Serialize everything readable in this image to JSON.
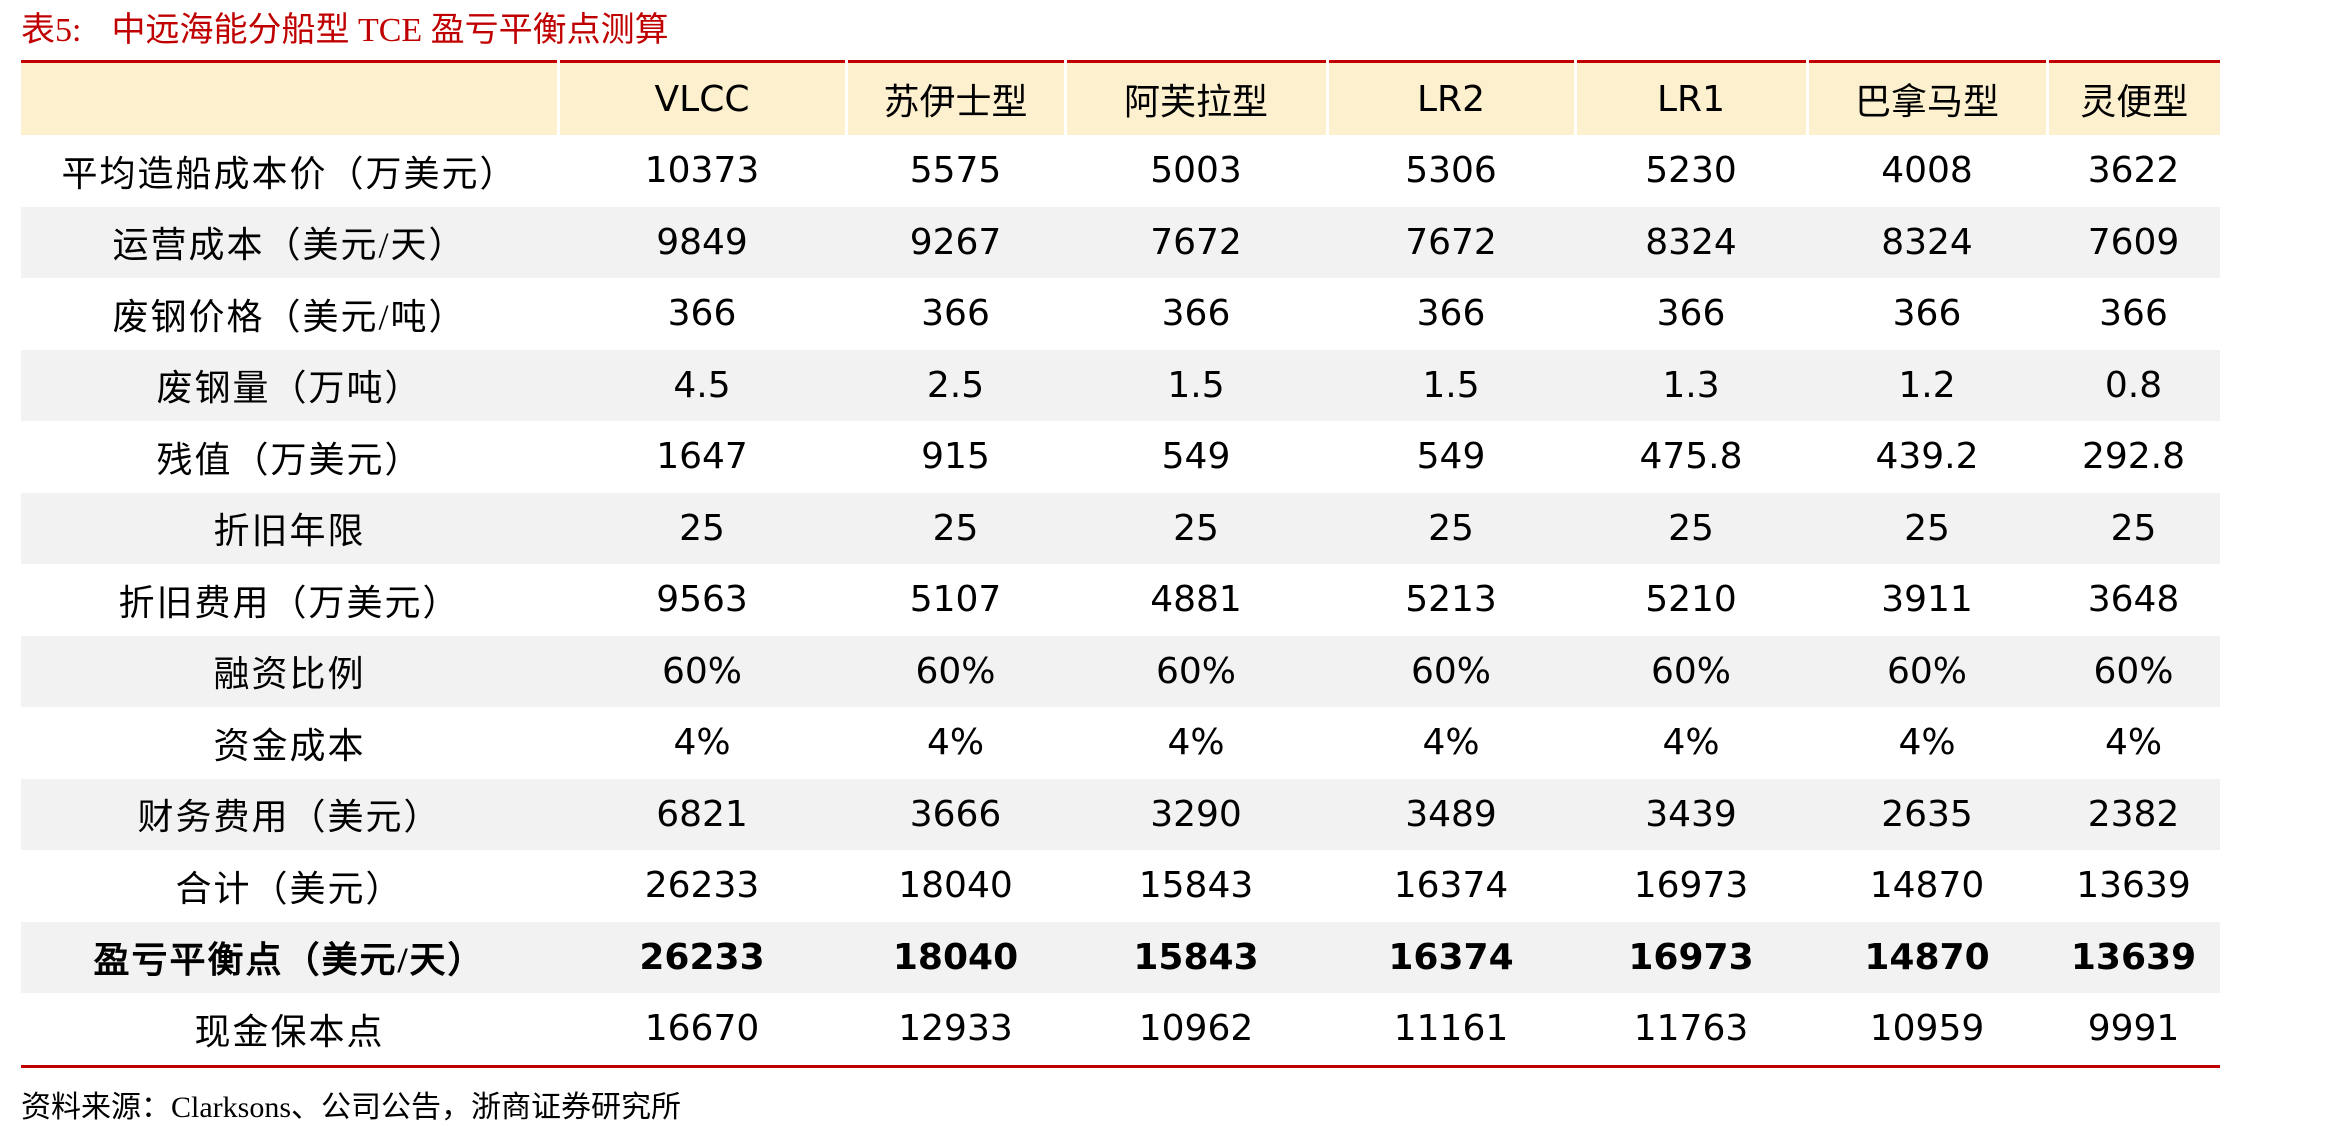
{
  "header": {
    "label": "表5:",
    "title": "中远海能分船型 TCE 盈亏平衡点测算"
  },
  "table": {
    "columns": [
      "VLCC",
      "苏伊士型",
      "阿芙拉型",
      "LR2",
      "LR1",
      "巴拿马型",
      "灵便型"
    ],
    "rows": [
      [
        "平均造船成本价（万美元）",
        "10373",
        "5575",
        "5003",
        "5306",
        "5230",
        "4008",
        "3622"
      ],
      [
        "运营成本（美元/天）",
        "9849",
        "9267",
        "7672",
        "7672",
        "8324",
        "8324",
        "7609"
      ],
      [
        "废钢价格（美元/吨）",
        "366",
        "366",
        "366",
        "366",
        "366",
        "366",
        "366"
      ],
      [
        "废钢量（万吨）",
        "4.5",
        "2.5",
        "1.5",
        "1.5",
        "1.3",
        "1.2",
        "0.8"
      ],
      [
        "残值（万美元）",
        "1647",
        "915",
        "549",
        "549",
        "475.8",
        "439.2",
        "292.8"
      ],
      [
        "折旧年限",
        "25",
        "25",
        "25",
        "25",
        "25",
        "25",
        "25"
      ],
      [
        "折旧费用（万美元）",
        "9563",
        "5107",
        "4881",
        "5213",
        "5210",
        "3911",
        "3648"
      ],
      [
        "融资比例",
        "60%",
        "60%",
        "60%",
        "60%",
        "60%",
        "60%",
        "60%"
      ],
      [
        "资金成本",
        "4%",
        "4%",
        "4%",
        "4%",
        "4%",
        "4%",
        "4%"
      ],
      [
        "财务费用（美元）",
        "6821",
        "3666",
        "3290",
        "3489",
        "3439",
        "2635",
        "2382"
      ],
      [
        "合计（美元）",
        "26233",
        "18040",
        "15843",
        "16374",
        "16973",
        "14870",
        "13639"
      ],
      [
        "盈亏平衡点（美元/天）",
        "26233",
        "18040",
        "15843",
        "16374",
        "16973",
        "14870",
        "13639"
      ],
      [
        "现金保本点",
        "16670",
        "12933",
        "10962",
        "11161",
        "11763",
        "10959",
        "9991"
      ]
    ]
  },
  "source": "资料来源：Clarksons、公司公告，浙商证券研究所"
}
